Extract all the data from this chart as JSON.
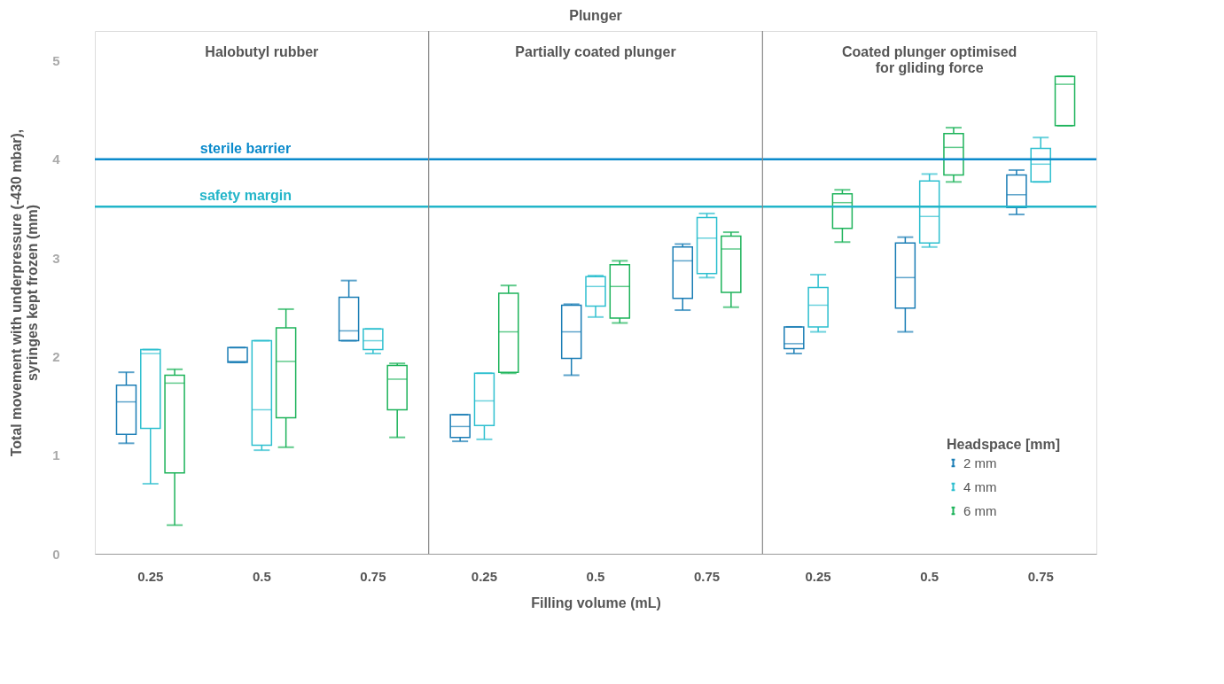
{
  "chart_data": {
    "type": "box",
    "title": "Plunger",
    "xlabel": "Filling volume (mL)",
    "ylabel": "Total movement with underpressure (-430 mbar),\nsyringes kept frozen (mm)",
    "legend_title": "Headspace [mm]",
    "legend": "bottom right",
    "grid": false,
    "annotations": [
      "Halobutyl rubber",
      "Partially coated plunger",
      "Coated plunger optimised\nfor gliding force"
    ],
    "categories": [
      "0.25",
      "0.5",
      "0.75",
      "0.25",
      "0.5",
      "0.75",
      "0.25",
      "0.5",
      "0.75"
    ],
    "ylim": [
      0,
      5.3
    ],
    "yticks": [
      0,
      1,
      2,
      3,
      4,
      5
    ],
    "ref_lines": [
      {
        "axis": "y",
        "value": 4.0,
        "label": "sterile barrier",
        "color": "#0a8acb"
      },
      {
        "axis": "y",
        "value": 3.52,
        "label": "safety margin",
        "color": "#22b5c9"
      }
    ],
    "series": [
      {
        "name": "2 mm",
        "color": "#1a7db5",
        "boxes": [
          {
            "low": 1.12,
            "q1": 1.21,
            "median": 1.54,
            "q3": 1.71,
            "high": 1.84
          },
          {
            "low": 1.94,
            "q1": 1.94,
            "median": 1.95,
            "q3": 2.09,
            "high": 2.09
          },
          {
            "low": 2.16,
            "q1": 2.16,
            "median": 2.26,
            "q3": 2.6,
            "high": 2.77
          },
          {
            "low": 1.14,
            "q1": 1.18,
            "median": 1.29,
            "q3": 1.41,
            "high": 1.41
          },
          {
            "low": 1.81,
            "q1": 1.98,
            "median": 2.25,
            "q3": 2.52,
            "high": 2.53
          },
          {
            "low": 2.47,
            "q1": 2.59,
            "median": 2.97,
            "q3": 3.11,
            "high": 3.14
          },
          {
            "low": 2.03,
            "q1": 2.08,
            "median": 2.13,
            "q3": 2.3,
            "high": 2.3
          },
          {
            "low": 2.25,
            "q1": 2.49,
            "median": 2.8,
            "q3": 3.15,
            "high": 3.21
          },
          {
            "low": 3.44,
            "q1": 3.51,
            "median": 3.64,
            "q3": 3.84,
            "high": 3.89
          }
        ]
      },
      {
        "name": "4 mm",
        "color": "#2dbfcf",
        "boxes": [
          {
            "low": 0.71,
            "q1": 1.27,
            "median": 2.03,
            "q3": 2.07,
            "high": 2.07
          },
          {
            "low": 1.05,
            "q1": 1.1,
            "median": 1.46,
            "q3": 2.16,
            "high": 2.16
          },
          {
            "low": 2.03,
            "q1": 2.07,
            "median": 2.16,
            "q3": 2.28,
            "high": 2.28
          },
          {
            "low": 1.16,
            "q1": 1.3,
            "median": 1.55,
            "q3": 1.83,
            "high": 1.83
          },
          {
            "low": 2.4,
            "q1": 2.51,
            "median": 2.71,
            "q3": 2.81,
            "high": 2.82
          },
          {
            "low": 2.8,
            "q1": 2.84,
            "median": 3.2,
            "q3": 3.41,
            "high": 3.45
          },
          {
            "low": 2.25,
            "q1": 2.3,
            "median": 2.52,
            "q3": 2.7,
            "high": 2.83
          },
          {
            "low": 3.11,
            "q1": 3.15,
            "median": 3.42,
            "q3": 3.78,
            "high": 3.85
          },
          {
            "low": 3.77,
            "q1": 3.77,
            "median": 3.95,
            "q3": 4.11,
            "high": 4.22
          }
        ]
      },
      {
        "name": "6 mm",
        "color": "#1db35a",
        "boxes": [
          {
            "low": 0.29,
            "q1": 0.82,
            "median": 1.73,
            "q3": 1.81,
            "high": 1.87
          },
          {
            "low": 1.08,
            "q1": 1.38,
            "median": 1.95,
            "q3": 2.29,
            "high": 2.48
          },
          {
            "low": 1.18,
            "q1": 1.46,
            "median": 1.77,
            "q3": 1.91,
            "high": 1.93
          },
          {
            "low": 1.83,
            "q1": 1.84,
            "median": 2.25,
            "q3": 2.64,
            "high": 2.72
          },
          {
            "low": 2.34,
            "q1": 2.39,
            "median": 2.71,
            "q3": 2.93,
            "high": 2.97
          },
          {
            "low": 2.5,
            "q1": 2.65,
            "median": 3.09,
            "q3": 3.22,
            "high": 3.26
          },
          {
            "low": 3.16,
            "q1": 3.3,
            "median": 3.56,
            "q3": 3.65,
            "high": 3.69
          },
          {
            "low": 3.77,
            "q1": 3.84,
            "median": 4.12,
            "q3": 4.26,
            "high": 4.32
          },
          {
            "low": 4.34,
            "q1": 4.34,
            "median": 4.76,
            "q3": 4.84,
            "high": 4.84
          }
        ]
      }
    ]
  }
}
